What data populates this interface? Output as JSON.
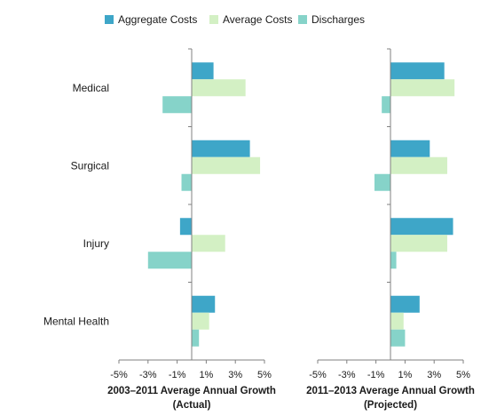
{
  "chart_data": {
    "type": "bar",
    "orientation": "horizontal",
    "legend": {
      "position": "top",
      "items": [
        "Aggregate Costs",
        "Average Costs",
        "Discharges"
      ]
    },
    "colors": {
      "Aggregate Costs": "#3ea6c8",
      "Average Costs": "#d3f0c4",
      "Discharges": "#86d3c9"
    },
    "categories": [
      "Medical",
      "Surgical",
      "Injury",
      "Mental Health"
    ],
    "grid": false,
    "panels": [
      {
        "title_line1": "2003–2011 Average Annual Growth",
        "title_line2": "(Actual)",
        "xlim": [
          -5,
          5
        ],
        "ticks": [
          "-5%",
          "-3%",
          "-1%",
          "1%",
          "3%",
          "5%"
        ],
        "tick_values": [
          -5,
          -3,
          -1,
          1,
          3,
          5
        ],
        "series": [
          {
            "name": "Aggregate Costs",
            "values": [
              1.5,
              4.0,
              -0.8,
              1.6
            ]
          },
          {
            "name": "Average Costs",
            "values": [
              3.7,
              4.7,
              2.3,
              1.2
            ]
          },
          {
            "name": "Discharges",
            "values": [
              -2.0,
              -0.7,
              -3.0,
              0.5
            ]
          }
        ]
      },
      {
        "title_line1": "2011–2013 Average Annual Growth",
        "title_line2": "(Projected)",
        "xlim": [
          -5,
          5
        ],
        "ticks": [
          "-5%",
          "-3%",
          "-1%",
          "1%",
          "3%",
          "5%"
        ],
        "tick_values": [
          -5,
          -3,
          -1,
          1,
          3,
          5
        ],
        "series": [
          {
            "name": "Aggregate Costs",
            "values": [
              3.7,
              2.7,
              4.3,
              2.0
            ]
          },
          {
            "name": "Average Costs",
            "values": [
              4.4,
              3.9,
              3.9,
              0.9
            ]
          },
          {
            "name": "Discharges",
            "values": [
              -0.6,
              -1.1,
              0.4,
              1.0
            ]
          }
        ]
      }
    ]
  }
}
